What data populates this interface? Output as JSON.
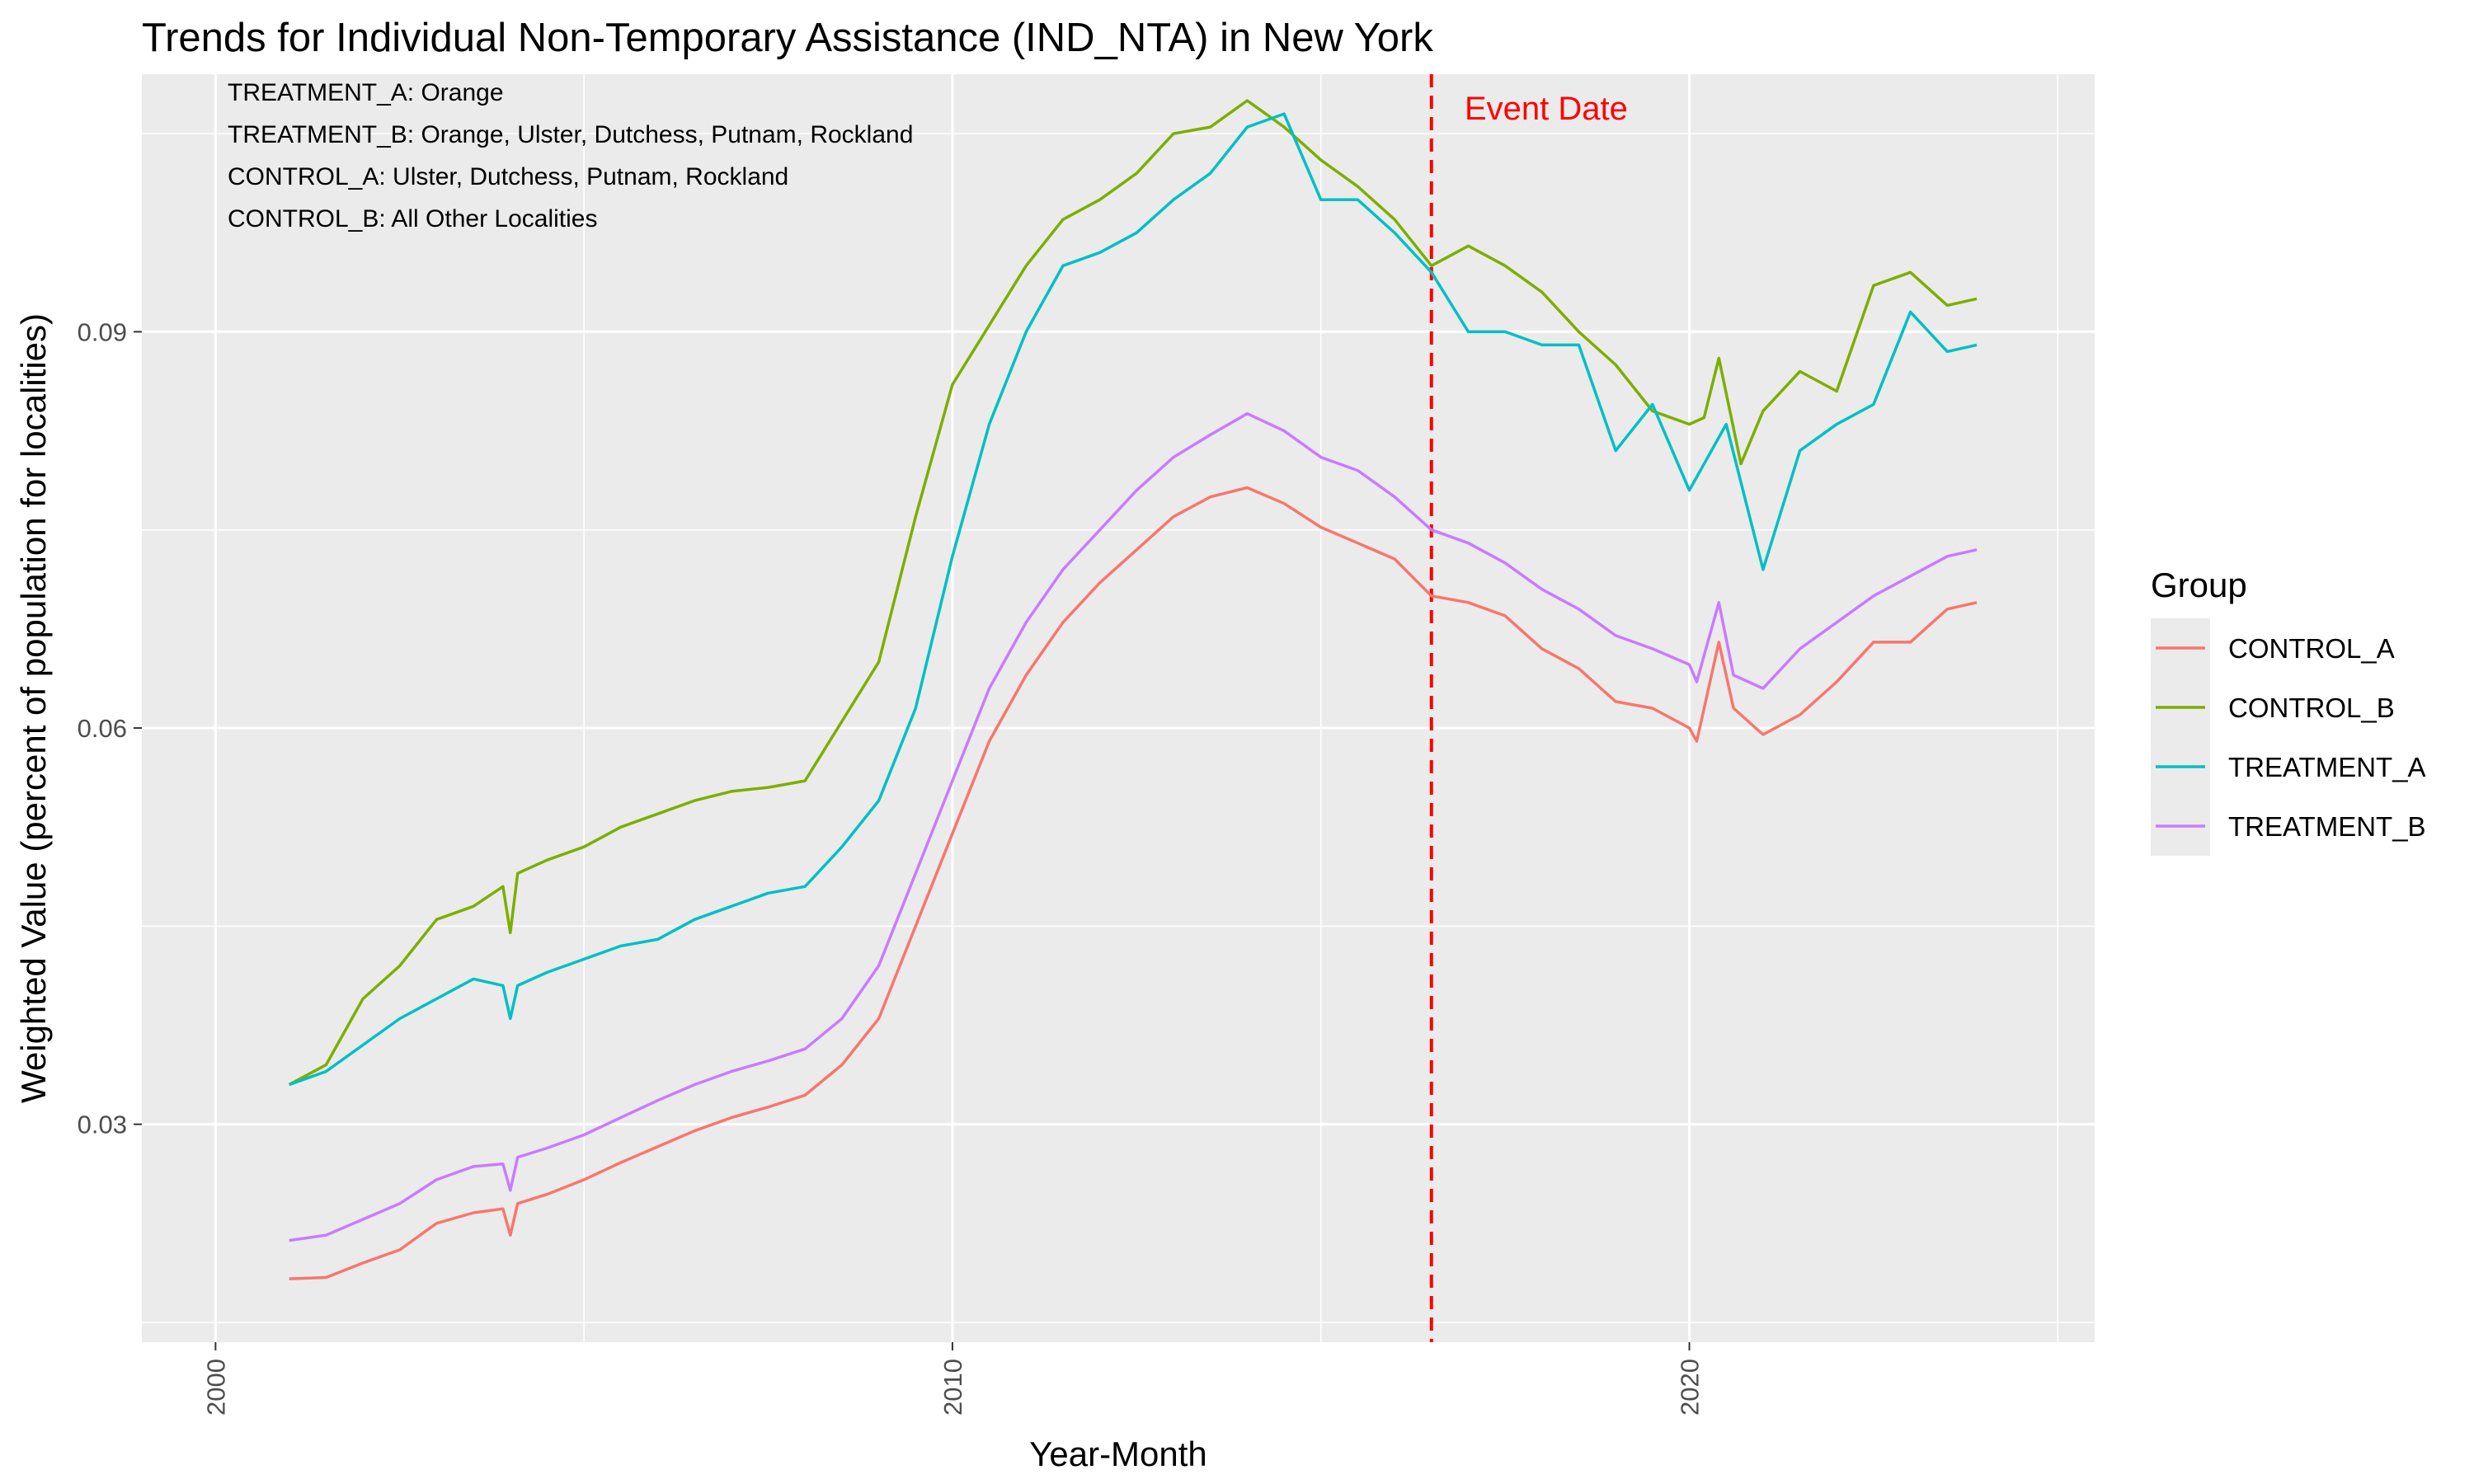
{
  "title": "Trends for Individual Non-Temporary Assistance (IND_NTA) in New York",
  "annotations": [
    "TREATMENT_A: Orange",
    "TREATMENT_B: Orange, Ulster, Dutchess, Putnam, Rockland",
    "CONTROL_A: Ulster, Dutchess, Putnam, Rockland",
    "CONTROL_B: All Other Localities"
  ],
  "event_label": "Event Date",
  "legend": {
    "title": "Group"
  },
  "colors": {
    "CONTROL_A": "#F8766D",
    "CONTROL_B": "#7CAE00",
    "TREATMENT_A": "#00BFC4",
    "TREATMENT_B": "#C77CFF",
    "event": "#ff0000",
    "panel": "#ebebeb",
    "grid": "#ffffff"
  },
  "chart_data": {
    "type": "line",
    "title": "Trends for Individual Non-Temporary Assistance (IND_NTA) in New York",
    "xlabel": "Year-Month",
    "ylabel": "Weighted Value (percent of population for localities)",
    "x_ticks": [
      "2000",
      "2010",
      "2020"
    ],
    "y_ticks": [
      "0.03",
      "0.06",
      "0.09"
    ],
    "xlim": [
      1999.0,
      2025.5
    ],
    "ylim": [
      0.0135,
      0.1095
    ],
    "grid": true,
    "legend_position": "right",
    "event_x": 2016.5,
    "series": [
      {
        "name": "CONTROL_A",
        "points": [
          [
            2001.0,
            0.0183
          ],
          [
            2001.5,
            0.0184
          ],
          [
            2002.0,
            0.0195
          ],
          [
            2002.5,
            0.0205
          ],
          [
            2003.0,
            0.0225
          ],
          [
            2003.5,
            0.0233
          ],
          [
            2003.9,
            0.0236
          ],
          [
            2004.0,
            0.0216
          ],
          [
            2004.1,
            0.024
          ],
          [
            2004.5,
            0.0247
          ],
          [
            2005.0,
            0.0258
          ],
          [
            2005.5,
            0.0271
          ],
          [
            2006.0,
            0.0283
          ],
          [
            2006.5,
            0.0295
          ],
          [
            2007.0,
            0.0305
          ],
          [
            2007.5,
            0.0313
          ],
          [
            2008.0,
            0.0322
          ],
          [
            2008.5,
            0.0345
          ],
          [
            2009.0,
            0.038
          ],
          [
            2009.5,
            0.045
          ],
          [
            2010.0,
            0.052
          ],
          [
            2010.5,
            0.059
          ],
          [
            2011.0,
            0.064
          ],
          [
            2011.5,
            0.068
          ],
          [
            2012.0,
            0.071
          ],
          [
            2012.5,
            0.0735
          ],
          [
            2013.0,
            0.076
          ],
          [
            2013.5,
            0.0775
          ],
          [
            2014.0,
            0.0782
          ],
          [
            2014.5,
            0.077
          ],
          [
            2015.0,
            0.0752
          ],
          [
            2015.5,
            0.074
          ],
          [
            2016.0,
            0.0728
          ],
          [
            2016.5,
            0.07
          ],
          [
            2017.0,
            0.0695
          ],
          [
            2017.5,
            0.0685
          ],
          [
            2018.0,
            0.066
          ],
          [
            2018.5,
            0.0645
          ],
          [
            2019.0,
            0.062
          ],
          [
            2019.5,
            0.0615
          ],
          [
            2020.0,
            0.06
          ],
          [
            2020.1,
            0.059
          ],
          [
            2020.4,
            0.0665
          ],
          [
            2020.6,
            0.0615
          ],
          [
            2021.0,
            0.0595
          ],
          [
            2021.5,
            0.061
          ],
          [
            2022.0,
            0.0635
          ],
          [
            2022.5,
            0.0665
          ],
          [
            2023.0,
            0.0665
          ],
          [
            2023.5,
            0.069
          ],
          [
            2023.9,
            0.0695
          ]
        ]
      },
      {
        "name": "CONTROL_B",
        "points": [
          [
            2001.0,
            0.033
          ],
          [
            2001.5,
            0.0345
          ],
          [
            2002.0,
            0.0395
          ],
          [
            2002.5,
            0.042
          ],
          [
            2003.0,
            0.0455
          ],
          [
            2003.5,
            0.0465
          ],
          [
            2003.9,
            0.048
          ],
          [
            2004.0,
            0.0445
          ],
          [
            2004.1,
            0.049
          ],
          [
            2004.5,
            0.05
          ],
          [
            2005.0,
            0.051
          ],
          [
            2005.5,
            0.0525
          ],
          [
            2006.0,
            0.0535
          ],
          [
            2006.5,
            0.0545
          ],
          [
            2007.0,
            0.0552
          ],
          [
            2007.5,
            0.0555
          ],
          [
            2008.0,
            0.056
          ],
          [
            2008.5,
            0.0605
          ],
          [
            2009.0,
            0.065
          ],
          [
            2009.5,
            0.076
          ],
          [
            2010.0,
            0.086
          ],
          [
            2010.5,
            0.0905
          ],
          [
            2011.0,
            0.095
          ],
          [
            2011.5,
            0.0985
          ],
          [
            2012.0,
            0.1
          ],
          [
            2012.5,
            0.102
          ],
          [
            2013.0,
            0.105
          ],
          [
            2013.5,
            0.1055
          ],
          [
            2014.0,
            0.1075
          ],
          [
            2014.5,
            0.1055
          ],
          [
            2015.0,
            0.103
          ],
          [
            2015.5,
            0.101
          ],
          [
            2016.0,
            0.0985
          ],
          [
            2016.5,
            0.095
          ],
          [
            2017.0,
            0.0965
          ],
          [
            2017.5,
            0.095
          ],
          [
            2018.0,
            0.093
          ],
          [
            2018.5,
            0.09
          ],
          [
            2019.0,
            0.0875
          ],
          [
            2019.5,
            0.084
          ],
          [
            2020.0,
            0.083
          ],
          [
            2020.2,
            0.0835
          ],
          [
            2020.4,
            0.088
          ],
          [
            2020.7,
            0.08
          ],
          [
            2021.0,
            0.084
          ],
          [
            2021.5,
            0.087
          ],
          [
            2022.0,
            0.0855
          ],
          [
            2022.5,
            0.0935
          ],
          [
            2023.0,
            0.0945
          ],
          [
            2023.5,
            0.092
          ],
          [
            2023.9,
            0.0925
          ]
        ]
      },
      {
        "name": "TREATMENT_A",
        "points": [
          [
            2001.0,
            0.033
          ],
          [
            2001.5,
            0.034
          ],
          [
            2002.0,
            0.036
          ],
          [
            2002.5,
            0.038
          ],
          [
            2003.0,
            0.0395
          ],
          [
            2003.5,
            0.041
          ],
          [
            2003.9,
            0.0405
          ],
          [
            2004.0,
            0.038
          ],
          [
            2004.1,
            0.0405
          ],
          [
            2004.5,
            0.0415
          ],
          [
            2005.0,
            0.0425
          ],
          [
            2005.5,
            0.0435
          ],
          [
            2006.0,
            0.044
          ],
          [
            2006.5,
            0.0455
          ],
          [
            2007.0,
            0.0465
          ],
          [
            2007.5,
            0.0475
          ],
          [
            2008.0,
            0.048
          ],
          [
            2008.5,
            0.051
          ],
          [
            2009.0,
            0.0545
          ],
          [
            2009.5,
            0.0615
          ],
          [
            2010.0,
            0.073
          ],
          [
            2010.5,
            0.083
          ],
          [
            2011.0,
            0.09
          ],
          [
            2011.5,
            0.095
          ],
          [
            2012.0,
            0.096
          ],
          [
            2012.5,
            0.0975
          ],
          [
            2013.0,
            0.1
          ],
          [
            2013.5,
            0.102
          ],
          [
            2014.0,
            0.1055
          ],
          [
            2014.5,
            0.1065
          ],
          [
            2015.0,
            0.1
          ],
          [
            2015.5,
            0.1
          ],
          [
            2016.0,
            0.0975
          ],
          [
            2016.5,
            0.0945
          ],
          [
            2017.0,
            0.09
          ],
          [
            2017.5,
            0.09
          ],
          [
            2018.0,
            0.089
          ],
          [
            2018.5,
            0.089
          ],
          [
            2019.0,
            0.081
          ],
          [
            2019.5,
            0.0845
          ],
          [
            2020.0,
            0.078
          ],
          [
            2020.5,
            0.083
          ],
          [
            2021.0,
            0.072
          ],
          [
            2021.5,
            0.081
          ],
          [
            2022.0,
            0.083
          ],
          [
            2022.5,
            0.0845
          ],
          [
            2023.0,
            0.0915
          ],
          [
            2023.5,
            0.0885
          ],
          [
            2023.9,
            0.089
          ]
        ]
      },
      {
        "name": "TREATMENT_B",
        "points": [
          [
            2001.0,
            0.0212
          ],
          [
            2001.5,
            0.0216
          ],
          [
            2002.0,
            0.0228
          ],
          [
            2002.5,
            0.024
          ],
          [
            2003.0,
            0.0258
          ],
          [
            2003.5,
            0.0268
          ],
          [
            2003.9,
            0.027
          ],
          [
            2004.0,
            0.025
          ],
          [
            2004.1,
            0.0275
          ],
          [
            2004.5,
            0.0282
          ],
          [
            2005.0,
            0.0292
          ],
          [
            2005.5,
            0.0305
          ],
          [
            2006.0,
            0.0318
          ],
          [
            2006.5,
            0.033
          ],
          [
            2007.0,
            0.034
          ],
          [
            2007.5,
            0.0348
          ],
          [
            2008.0,
            0.0357
          ],
          [
            2008.5,
            0.038
          ],
          [
            2009.0,
            0.042
          ],
          [
            2009.5,
            0.049
          ],
          [
            2010.0,
            0.056
          ],
          [
            2010.5,
            0.063
          ],
          [
            2011.0,
            0.068
          ],
          [
            2011.5,
            0.072
          ],
          [
            2012.0,
            0.075
          ],
          [
            2012.5,
            0.078
          ],
          [
            2013.0,
            0.0805
          ],
          [
            2013.5,
            0.0822
          ],
          [
            2014.0,
            0.0838
          ],
          [
            2014.5,
            0.0825
          ],
          [
            2015.0,
            0.0805
          ],
          [
            2015.5,
            0.0795
          ],
          [
            2016.0,
            0.0775
          ],
          [
            2016.5,
            0.075
          ],
          [
            2017.0,
            0.074
          ],
          [
            2017.5,
            0.0725
          ],
          [
            2018.0,
            0.0705
          ],
          [
            2018.5,
            0.069
          ],
          [
            2019.0,
            0.067
          ],
          [
            2019.5,
            0.066
          ],
          [
            2020.0,
            0.0648
          ],
          [
            2020.1,
            0.0635
          ],
          [
            2020.4,
            0.0695
          ],
          [
            2020.6,
            0.064
          ],
          [
            2021.0,
            0.063
          ],
          [
            2021.5,
            0.066
          ],
          [
            2022.0,
            0.068
          ],
          [
            2022.5,
            0.07
          ],
          [
            2023.0,
            0.0715
          ],
          [
            2023.5,
            0.073
          ],
          [
            2023.9,
            0.0735
          ]
        ]
      }
    ]
  }
}
